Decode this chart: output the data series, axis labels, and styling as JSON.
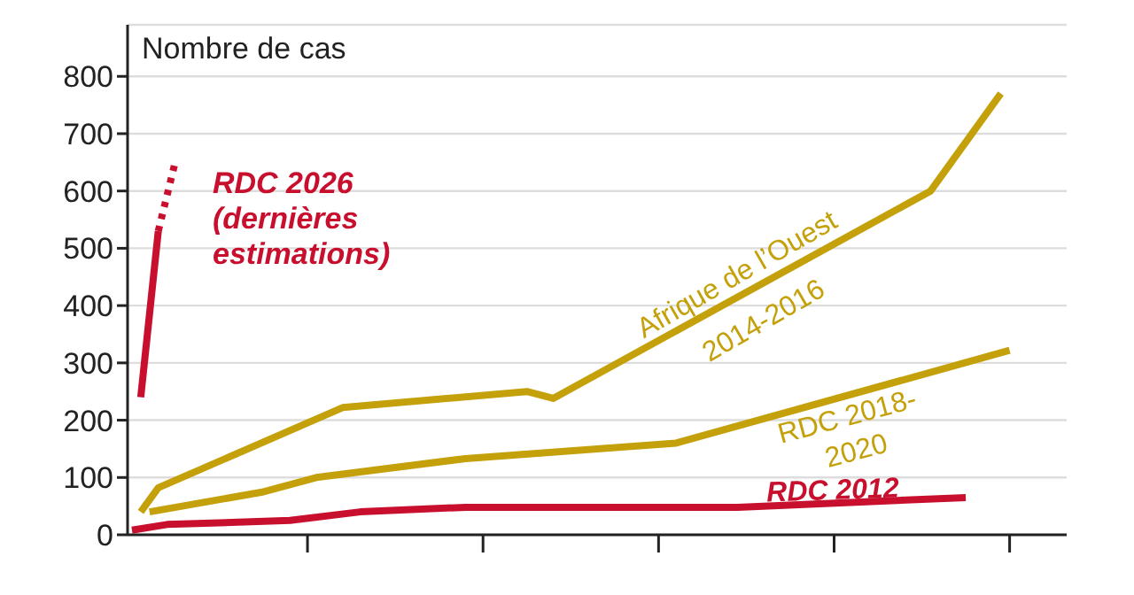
{
  "chart_data": {
    "type": "line",
    "ylabel": "Nombre de cas",
    "categories": [
      null,
      null,
      null,
      null,
      null,
      null,
      null,
      null,
      null,
      null,
      null,
      null,
      null,
      null,
      null,
      null,
      null,
      null,
      null,
      null,
      null,
      null,
      null,
      null,
      null,
      null,
      null,
      null,
      null,
      null,
      null,
      null,
      null,
      null,
      null,
      null,
      null,
      null,
      null,
      null,
      null,
      null,
      null,
      null,
      null,
      null,
      null,
      null,
      null,
      null,
      null,
      null,
      null,
      null,
      null,
      null,
      null,
      null,
      null,
      null,
      null,
      null,
      null,
      null,
      null,
      null,
      null,
      null,
      null,
      null,
      null,
      null,
      null,
      null,
      null,
      null,
      null,
      null,
      null,
      null,
      null,
      null,
      null,
      null,
      null,
      null,
      null,
      null,
      null,
      null,
      null,
      null,
      null,
      null,
      null,
      null,
      null,
      null,
      null,
      null,
      null,
      null,
      null,
      null,
      null,
      null,
      null
    ],
    "ylim": [
      0,
      890
    ],
    "yticks": [
      0,
      100,
      200,
      300,
      400,
      500,
      600,
      700,
      800
    ],
    "grid": "y",
    "tick_labels": "y",
    "marker": "none",
    "series": [
      {
        "name": "RDC 2026 (dernières estimations)",
        "color": "#c8102e",
        "values": [
          null,
          240,
          null,
          530,
          null,
          null,
          null,
          null,
          null,
          null,
          null,
          null,
          null,
          null,
          null,
          null,
          null,
          null,
          null,
          null,
          null,
          null,
          null,
          null,
          null,
          null,
          null,
          null,
          null,
          null,
          null,
          null,
          null,
          null,
          null,
          null,
          null,
          null,
          null,
          null,
          null,
          null,
          null,
          null,
          null,
          null,
          null,
          null,
          null,
          null,
          null,
          null,
          null,
          null,
          null,
          null,
          null,
          null,
          null,
          null,
          null,
          null,
          null,
          null,
          null,
          null,
          null,
          null,
          null,
          null,
          null,
          null,
          null,
          null,
          null,
          null,
          null,
          null,
          null,
          null,
          null,
          null,
          null,
          null,
          null,
          null,
          null,
          null,
          null,
          null,
          null,
          null,
          null,
          null,
          null,
          null,
          null,
          null,
          null,
          null,
          null,
          null,
          null,
          null,
          null,
          null,
          null
        ],
        "line_style": "solid"
      },
      {
        "color": "#c8102e",
        "values": [
          null,
          null,
          null,
          530,
          null,
          655,
          null,
          null,
          null,
          null,
          null,
          null,
          null,
          null,
          null,
          null,
          null,
          null,
          null,
          null,
          null,
          null,
          null,
          null,
          null,
          null,
          null,
          null,
          null,
          null,
          null,
          null,
          null,
          null,
          null,
          null,
          null,
          null,
          null,
          null,
          null,
          null,
          null,
          null,
          null,
          null,
          null,
          null,
          null,
          null,
          null,
          null,
          null,
          null,
          null,
          null,
          null,
          null,
          null,
          null,
          null,
          null,
          null,
          null,
          null,
          null,
          null,
          null,
          null,
          null,
          null,
          null,
          null,
          null,
          null,
          null,
          null,
          null,
          null,
          null,
          null,
          null,
          null,
          null,
          null,
          null,
          null,
          null,
          null,
          null,
          null,
          null,
          null,
          null,
          null,
          null,
          null,
          null,
          null,
          null,
          null,
          null,
          null,
          null,
          null,
          null,
          null
        ],
        "line_style": "dotted"
      },
      {
        "name": "Afrique de l’Ouest 2014-2016",
        "color": "#c4a10a",
        "values": [
          null,
          40,
          null,
          82,
          null,
          null,
          null,
          null,
          null,
          null,
          null,
          null,
          null,
          null,
          null,
          null,
          null,
          null,
          null,
          null,
          null,
          null,
          null,
          null,
          222,
          null,
          null,
          null,
          null,
          null,
          null,
          null,
          null,
          null,
          null,
          null,
          null,
          null,
          null,
          null,
          null,
          null,
          null,
          null,
          null,
          250,
          null,
          null,
          238,
          null,
          null,
          null,
          null,
          null,
          null,
          null,
          null,
          null,
          null,
          null,
          null,
          null,
          null,
          null,
          null,
          null,
          null,
          null,
          null,
          null,
          null,
          null,
          null,
          null,
          null,
          null,
          null,
          null,
          null,
          null,
          null,
          null,
          null,
          null,
          null,
          null,
          null,
          null,
          null,
          null,
          null,
          600,
          null,
          null,
          null,
          null,
          null,
          null,
          null,
          770,
          null,
          null,
          null,
          null,
          null,
          null,
          null
        ],
        "line_style": "solid"
      },
      {
        "name": "RDC 2018-2020",
        "color": "#c4a10a",
        "values": [
          null,
          null,
          40,
          null,
          null,
          null,
          null,
          null,
          null,
          null,
          null,
          null,
          null,
          null,
          null,
          75,
          null,
          null,
          null,
          null,
          null,
          100,
          null,
          null,
          null,
          null,
          null,
          null,
          null,
          null,
          null,
          null,
          null,
          null,
          null,
          null,
          null,
          null,
          133,
          null,
          null,
          null,
          null,
          null,
          null,
          null,
          null,
          null,
          null,
          null,
          null,
          null,
          null,
          null,
          null,
          null,
          null,
          null,
          null,
          null,
          null,
          null,
          160,
          null,
          null,
          null,
          null,
          null,
          null,
          null,
          null,
          null,
          null,
          null,
          null,
          null,
          null,
          null,
          null,
          null,
          null,
          null,
          null,
          null,
          null,
          null,
          null,
          null,
          null,
          null,
          null,
          null,
          null,
          null,
          null,
          null,
          null,
          null,
          null,
          null,
          322,
          null,
          null,
          null,
          null,
          null,
          null
        ],
        "line_style": "solid"
      },
      {
        "name": "RDC 2012",
        "color": "#c8102e",
        "values": [
          8,
          null,
          null,
          null,
          18,
          null,
          null,
          null,
          null,
          null,
          null,
          null,
          null,
          null,
          null,
          null,
          null,
          null,
          25,
          null,
          null,
          null,
          null,
          null,
          null,
          null,
          40,
          null,
          null,
          null,
          null,
          null,
          null,
          null,
          null,
          null,
          null,
          null,
          48,
          null,
          null,
          null,
          null,
          null,
          null,
          null,
          null,
          null,
          null,
          null,
          null,
          null,
          null,
          null,
          null,
          null,
          null,
          null,
          null,
          null,
          null,
          null,
          null,
          null,
          null,
          null,
          null,
          null,
          null,
          48,
          null,
          null,
          null,
          null,
          null,
          null,
          null,
          null,
          null,
          null,
          null,
          null,
          null,
          null,
          null,
          null,
          null,
          null,
          null,
          null,
          null,
          null,
          null,
          null,
          null,
          65,
          null,
          null,
          null,
          null,
          null,
          null,
          null,
          null,
          null,
          null,
          null
        ],
        "line_style": "solid"
      }
    ]
  }
}
